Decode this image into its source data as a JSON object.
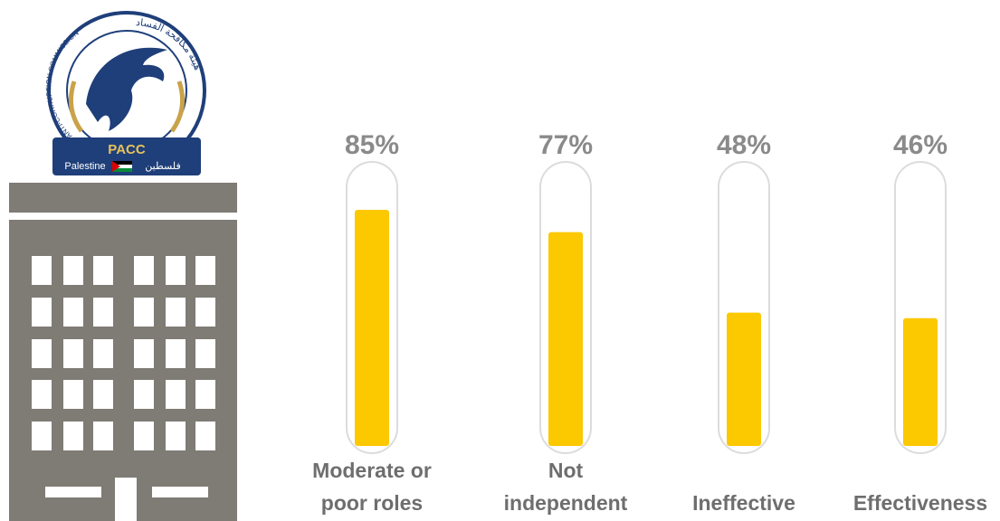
{
  "logo": {
    "name": "PACC",
    "ring_text": "ANTI-CORRUPTION COMMISSION",
    "arabic_ring_text": "هيئة مكافحة الفساد",
    "country": "Palestine",
    "country_arabic": "فلسطين"
  },
  "chart_data": {
    "type": "bar",
    "categories": [
      "Moderate or poor roles",
      "Not independent",
      "Ineffective",
      "Effectiveness"
    ],
    "values": [
      85,
      77,
      48,
      46
    ],
    "value_labels": [
      "85%",
      "77%",
      "48%",
      "46%"
    ],
    "color": "#fcc800",
    "ylim": [
      0,
      100
    ]
  }
}
